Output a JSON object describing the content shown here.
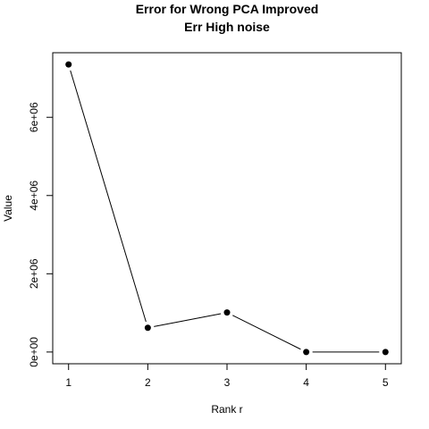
{
  "chart_data": {
    "type": "line",
    "title": "Error for Wrong PCA Improved",
    "subtitle": "Err High noise",
    "xlabel": "Rank r",
    "ylabel": "Value",
    "x": [
      1,
      2,
      3,
      4,
      5
    ],
    "series": [
      {
        "values": [
          7350000,
          620000,
          1010000,
          0,
          0
        ]
      }
    ],
    "xlim": [
      0.8,
      5.2
    ],
    "ylim": [
      -300000,
      7650000
    ],
    "x_ticks": [
      1,
      2,
      3,
      4,
      5
    ],
    "x_tick_labels": [
      "1",
      "2",
      "3",
      "4",
      "5"
    ],
    "y_ticks": [
      0,
      2000000,
      4000000,
      6000000
    ],
    "y_tick_labels": [
      "0e+00",
      "2e+06",
      "4e+06",
      "6e+06"
    ],
    "grid": false,
    "line_color": "#000000",
    "marker": "filled-circle"
  }
}
